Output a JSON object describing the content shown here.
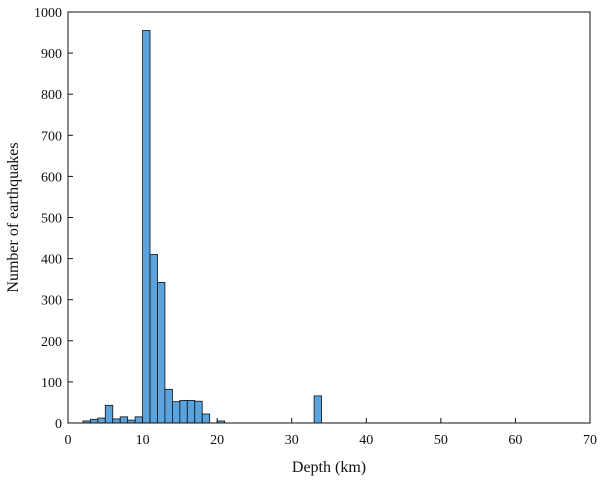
{
  "chart_data": {
    "type": "bar",
    "xlabel": "Depth (km)",
    "ylabel": "Number of earthquakes",
    "xlim": [
      0,
      70
    ],
    "ylim": [
      0,
      1000
    ],
    "x_ticks": [
      "0",
      "10",
      "20",
      "30",
      "40",
      "50",
      "60",
      "70"
    ],
    "y_ticks": [
      "0",
      "100",
      "200",
      "300",
      "400",
      "500",
      "600",
      "700",
      "800",
      "900",
      "1000"
    ],
    "bin_width": 1,
    "bar_color": "#5aa3dd",
    "grid": false,
    "bins": [
      {
        "start": 2,
        "value": 5
      },
      {
        "start": 3,
        "value": 9
      },
      {
        "start": 4,
        "value": 12
      },
      {
        "start": 5,
        "value": 43
      },
      {
        "start": 6,
        "value": 10
      },
      {
        "start": 7,
        "value": 15
      },
      {
        "start": 8,
        "value": 7
      },
      {
        "start": 9,
        "value": 15
      },
      {
        "start": 10,
        "value": 955
      },
      {
        "start": 11,
        "value": 410
      },
      {
        "start": 12,
        "value": 342
      },
      {
        "start": 13,
        "value": 82
      },
      {
        "start": 14,
        "value": 52
      },
      {
        "start": 15,
        "value": 55
      },
      {
        "start": 16,
        "value": 55
      },
      {
        "start": 17,
        "value": 53
      },
      {
        "start": 18,
        "value": 22
      },
      {
        "start": 20,
        "value": 5
      },
      {
        "start": 33,
        "value": 66
      }
    ]
  }
}
